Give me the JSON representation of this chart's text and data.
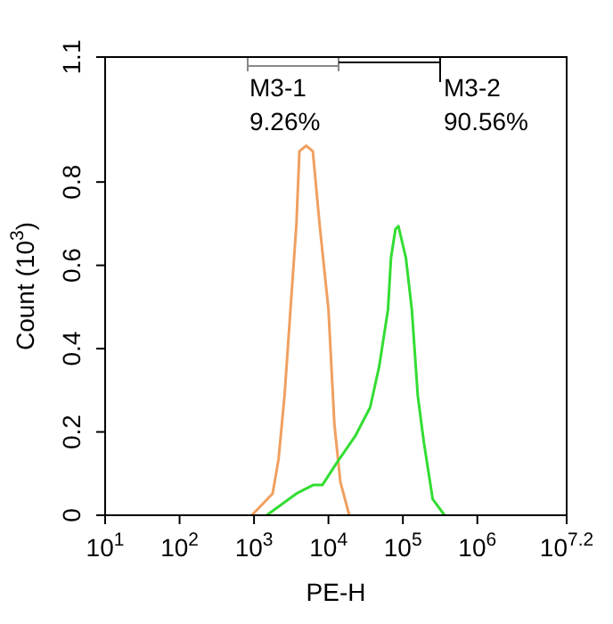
{
  "chart_data": {
    "type": "line",
    "xlabel": "PE-H",
    "ylabel": "Count (10$^{3}$)",
    "log": "x",
    "xlim": [
      10,
      15848932
    ],
    "xticks": [
      {
        "value": 10,
        "label": "10$^{1}$"
      },
      {
        "value": 100,
        "label": "10$^{2}$"
      },
      {
        "value": 1000,
        "label": "10$^{3}$"
      },
      {
        "value": 10000,
        "label": "10$^{4}$"
      },
      {
        "value": 100000,
        "label": "10$^{5}$"
      },
      {
        "value": 1000000,
        "label": "10$^{6}$"
      },
      {
        "value": 15848932,
        "label": "10$^{7.2}$"
      }
    ],
    "ylim": [
      0,
      1.1
    ],
    "yticks": [
      0,
      0.2,
      0.4,
      0.6,
      0.8,
      1.1
    ],
    "series": [
      {
        "color": "#f0a060",
        "x": [
          933,
          1778,
          2138,
          2570,
          3090,
          3715,
          4074,
          5012,
          6166,
          7586,
          10000,
          12023,
          14454,
          19055
        ],
        "values": [
          0,
          0.052,
          0.135,
          0.287,
          0.494,
          0.7,
          0.874,
          0.887,
          0.874,
          0.7,
          0.494,
          0.218,
          0.08,
          0
        ]
      },
      {
        "color": "#33dd33",
        "x": [
          1479,
          3715,
          6310,
          8318,
          13183,
          22909,
          36308,
          47863,
          63096,
          69183,
          79433,
          87096,
          109648,
          131826,
          158489,
          190546,
          251189,
          363078
        ],
        "values": [
          0,
          0.052,
          0.073,
          0.073,
          0.128,
          0.19,
          0.259,
          0.356,
          0.494,
          0.618,
          0.687,
          0.694,
          0.618,
          0.494,
          0.287,
          0.177,
          0.039,
          0
        ]
      }
    ],
    "annotations": [
      "M3-1",
      "9.26%",
      "M3-2",
      "90.56%"
    ]
  }
}
